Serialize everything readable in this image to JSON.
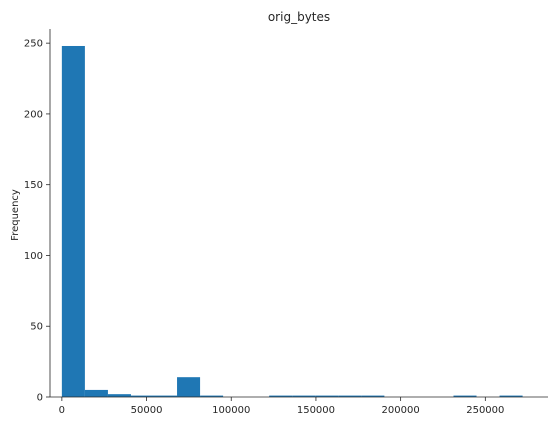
{
  "chart_data": {
    "type": "histogram",
    "title": "orig_bytes",
    "xlabel": "",
    "ylabel": "Frequency",
    "xlim": [
      -7000,
      287000
    ],
    "ylim": [
      0,
      260
    ],
    "bar_color": "#1f77b4",
    "bin_edges": [
      0,
      13600,
      27200,
      40800,
      54400,
      68000,
      81600,
      95200,
      108800,
      122400,
      136000,
      149600,
      163200,
      176800,
      190400,
      204000,
      217600,
      231200,
      244800,
      258400,
      272000
    ],
    "values": [
      248,
      5,
      2,
      1,
      1,
      14,
      1,
      0,
      0,
      1,
      1,
      1,
      1,
      1,
      0,
      0,
      0,
      1,
      0,
      1
    ],
    "x_ticks": [
      0,
      50000,
      100000,
      150000,
      200000,
      250000
    ],
    "x_tick_labels": [
      "0",
      "50000",
      "100000",
      "150000",
      "200000",
      "250000"
    ],
    "y_ticks": [
      0,
      50,
      100,
      150,
      200,
      250
    ],
    "y_tick_labels": [
      "0",
      "50",
      "100",
      "150",
      "200",
      "250"
    ],
    "grid": false,
    "spines": "left-bottom"
  }
}
